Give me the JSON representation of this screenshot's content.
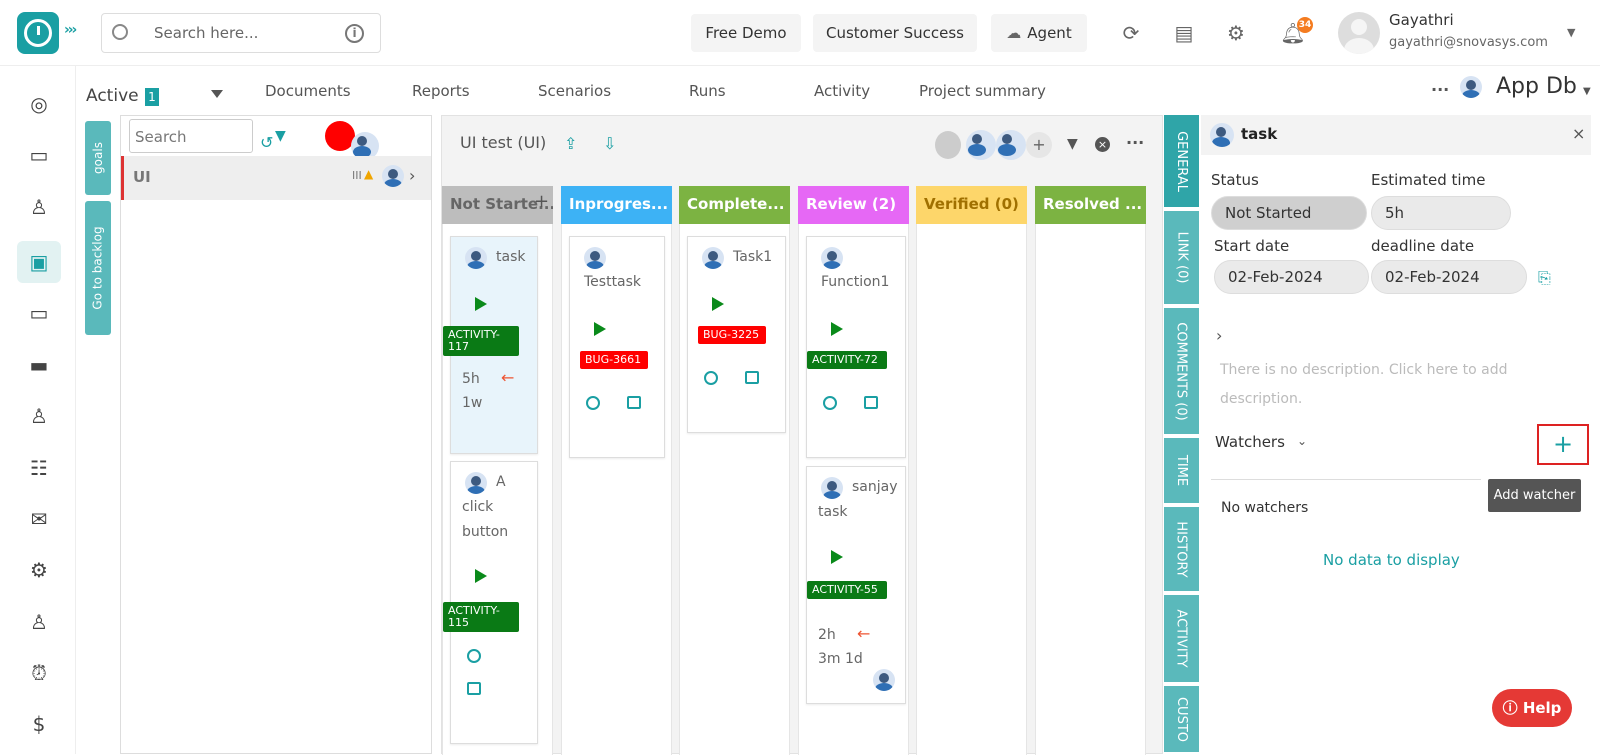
{
  "header": {
    "search_placeholder": "Search here...",
    "free_demo": "Free Demo",
    "customer_success": "Customer Success",
    "agent": "Agent",
    "notification_count": "34",
    "user_name": "Gayathri",
    "user_email": "gayathri@snovasys.com"
  },
  "tabs_row": {
    "active_label": "Active",
    "active_count": "1",
    "tabs": [
      "Documents",
      "Reports",
      "Scenarios",
      "Runs",
      "Activity",
      "Project summary"
    ],
    "project_name": "App Db"
  },
  "side_buttons": {
    "goals": "goals",
    "backlog": "Go to backlog"
  },
  "list_panel": {
    "search_placeholder": "Search",
    "row_label": "UI"
  },
  "board": {
    "title": "UI test (UI)",
    "columns": [
      {
        "label": "Not Starte...",
        "color": "#bdbdbd"
      },
      {
        "label": "Inprogres...",
        "color": "#3db2f5"
      },
      {
        "label": "Complete...",
        "color": "#7cb342"
      },
      {
        "label": "Review (2)",
        "color": "#e668f5"
      },
      {
        "label": "Verified (0)",
        "color": "#fdd66a"
      },
      {
        "label": "Resolved ...",
        "color": "#7cb342"
      }
    ],
    "cards": {
      "c1": {
        "title": "task",
        "tag": "ACTIVITY-117",
        "estimate": "5h",
        "spent": "1w"
      },
      "c2": {
        "title": "A click button",
        "tag": "ACTIVITY-115"
      },
      "c3": {
        "title": "Testtask",
        "tag": "BUG-3661"
      },
      "c4": {
        "title": "Task1",
        "tag": "BUG-3225"
      },
      "c5": {
        "title": "Function1",
        "tag": "ACTIVITY-72"
      },
      "c6": {
        "title": "sanjay task",
        "tag": "ACTIVITY-55",
        "estimate": "2h",
        "spent": "3m 1d"
      }
    }
  },
  "right_tabs": [
    "GENERAL",
    "LINK (0)",
    "COMMENTS (0)",
    "TIME",
    "HISTORY",
    "ACTIVITY",
    "CUSTO"
  ],
  "detail": {
    "title": "task",
    "status_label": "Status",
    "status_value": "Not Started",
    "estimated_label": "Estimated time",
    "estimated_value": "5h",
    "start_label": "Start date",
    "start_value": "02-Feb-2024",
    "deadline_label": "deadline date",
    "deadline_value": "02-Feb-2024",
    "description": "There is no description. Click here to add description.",
    "watchers_label": "Watchers",
    "add_watcher_tooltip": "Add watcher",
    "no_watchers": "No watchers",
    "no_data": "No data to display",
    "help": "Help"
  }
}
